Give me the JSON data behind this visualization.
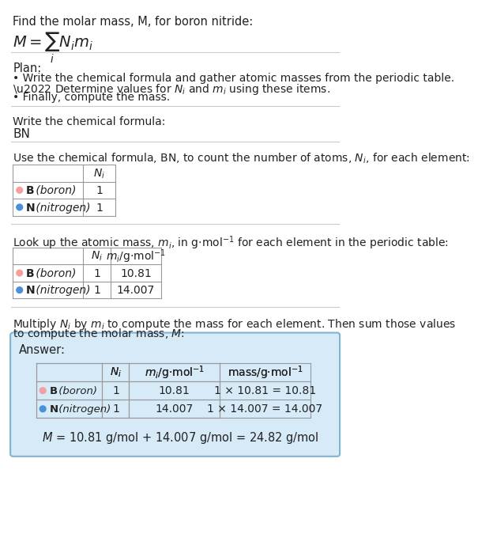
{
  "title_line1": "Find the molar mass, M, for boron nitride:",
  "bg_color": "#ffffff",
  "plan_header": "Plan:",
  "plan_bullets": [
    "• Write the chemical formula and gather atomic masses from the periodic table.",
    "• Determine values for N_i and m_i using these items.",
    "• Finally, compute the mass."
  ],
  "step1_header": "Write the chemical formula:",
  "step1_value": "BN",
  "step2_header": "Use the chemical formula, BN, to count the number of atoms, $N_i$, for each element:",
  "step3_header": "Look up the atomic mass, $m_i$, in g$\\cdot$mol$^{-1}$ for each element in the periodic table:",
  "step4_line1": "Multiply $N_i$ by $m_i$ to compute the mass for each element. Then sum those values",
  "step4_line2": "to compute the molar mass, $M$:",
  "answer_label": "Answer:",
  "elements": [
    {
      "symbol": "B",
      "name": "boron",
      "color": "#f4a0a0",
      "Ni": "1",
      "mi": "10.81",
      "mass_str": "1 × 10.81 = 10.81"
    },
    {
      "symbol": "N",
      "name": "nitrogen",
      "color": "#4a90d9",
      "Ni": "1",
      "mi": "14.007",
      "mass_str": "1 × 14.007 = 14.007"
    }
  ],
  "final_eq": "$M$ = 10.81 g/mol + 14.007 g/mol = 24.82 g/mol",
  "answer_box_bg": "#d6eaf8",
  "answer_box_border": "#7fb3d3",
  "text_color": "#222222",
  "separator_color": "#cccccc",
  "table_line_color": "#999999"
}
